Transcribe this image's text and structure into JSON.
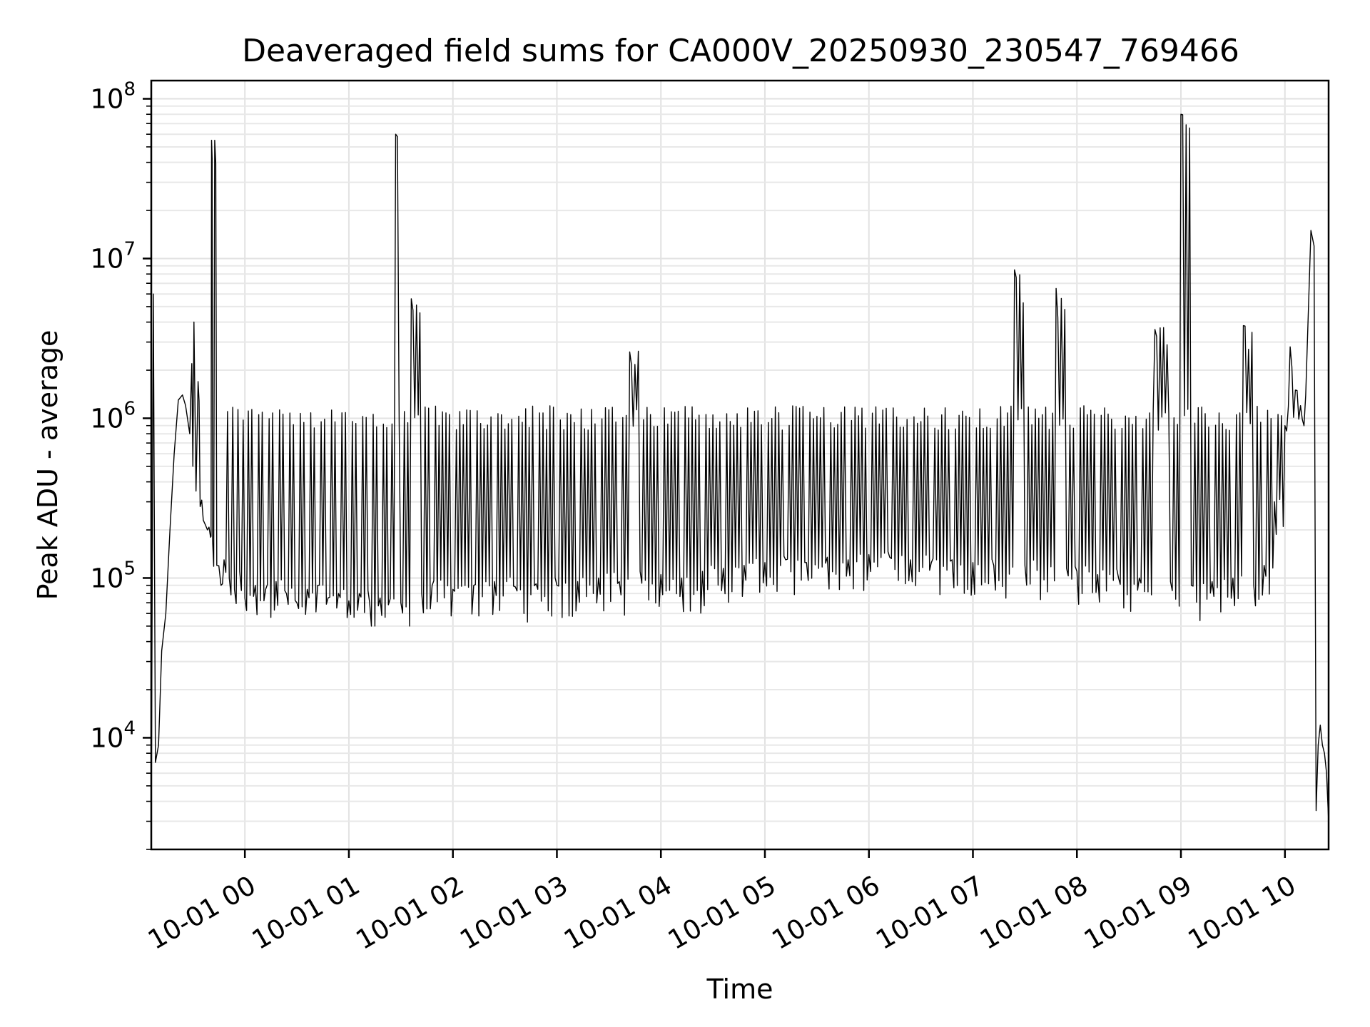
{
  "chart_data": {
    "type": "line",
    "title": "Deaveraged field sums for CA000V_20250930_230547_769466",
    "xlabel": "Time",
    "ylabel": "Peak ADU - average",
    "yscale": "log",
    "ylim": [
      2000,
      130000000
    ],
    "xlim_hours": [
      -0.9,
      10.42
    ],
    "grid": true,
    "x_ticks": [
      {
        "label": "10-01 00",
        "hour": 0
      },
      {
        "label": "10-01 01",
        "hour": 1
      },
      {
        "label": "10-01 02",
        "hour": 2
      },
      {
        "label": "10-01 03",
        "hour": 3
      },
      {
        "label": "10-01 04",
        "hour": 4
      },
      {
        "label": "10-01 05",
        "hour": 5
      },
      {
        "label": "10-01 06",
        "hour": 6
      },
      {
        "label": "10-01 07",
        "hour": 7
      },
      {
        "label": "10-01 08",
        "hour": 8
      },
      {
        "label": "10-01 09",
        "hour": 9
      },
      {
        "label": "10-01 10",
        "hour": 10
      }
    ],
    "y_ticks": [
      {
        "base": "10",
        "exp": "4",
        "value": 10000
      },
      {
        "base": "10",
        "exp": "5",
        "value": 100000
      },
      {
        "base": "10",
        "exp": "6",
        "value": 1000000
      },
      {
        "base": "10",
        "exp": "7",
        "value": 10000000
      },
      {
        "base": "10",
        "exp": "8",
        "value": 100000000
      }
    ],
    "series": [
      {
        "name": "Peak ADU - average",
        "color": "#000000",
        "points": [
          [
            -0.9,
            2800
          ],
          [
            -0.88,
            6000000
          ],
          [
            -0.86,
            7000
          ],
          [
            -0.83,
            9000
          ],
          [
            -0.8,
            35000
          ],
          [
            -0.76,
            60000
          ],
          [
            -0.72,
            200000
          ],
          [
            -0.68,
            600000
          ],
          [
            -0.64,
            1300000
          ],
          [
            -0.6,
            1400000
          ],
          [
            -0.57,
            1200000
          ],
          [
            -0.53,
            800000
          ],
          [
            -0.51,
            2200000
          ],
          [
            -0.5,
            500000
          ],
          [
            -0.49,
            4000000
          ],
          [
            -0.47,
            350000
          ],
          [
            -0.45,
            1700000
          ],
          [
            -0.43,
            280000
          ],
          [
            -0.4,
            230000
          ],
          [
            -0.36,
            200000
          ],
          [
            -0.33,
            180000
          ],
          [
            -0.32,
            55000000
          ],
          [
            -0.31,
            170000
          ],
          [
            -0.29,
            55000000
          ],
          [
            -0.27,
            120000
          ],
          [
            -0.23,
            90000
          ],
          [
            -0.2,
            130000
          ],
          [
            -0.15,
            100000
          ],
          [
            -0.1,
            85000
          ],
          [
            -0.05,
            110000
          ],
          [
            0.0,
            75000
          ],
          [
            0.1,
            90000
          ],
          [
            0.2,
            85000
          ],
          [
            0.3,
            95000
          ],
          [
            0.4,
            80000
          ],
          [
            0.5,
            70000
          ],
          [
            0.6,
            85000
          ],
          [
            0.7,
            90000
          ],
          [
            0.8,
            75000
          ],
          [
            0.9,
            80000
          ],
          [
            1.0,
            72000
          ],
          [
            1.1,
            80000
          ],
          [
            1.2,
            70000
          ],
          [
            1.3,
            75000
          ],
          [
            1.38,
            68000
          ],
          [
            1.45,
            60000000
          ],
          [
            1.5,
            70000
          ],
          [
            1.6,
            5600000
          ],
          [
            1.7,
            80000
          ],
          [
            1.8,
            90000
          ],
          [
            2.0,
            85000
          ],
          [
            2.2,
            90000
          ],
          [
            2.4,
            95000
          ],
          [
            2.6,
            88000
          ],
          [
            2.8,
            92000
          ],
          [
            3.0,
            90000
          ],
          [
            3.2,
            95000
          ],
          [
            3.4,
            100000
          ],
          [
            3.6,
            95000
          ],
          [
            3.7,
            2600000
          ],
          [
            3.8,
            110000
          ],
          [
            4.0,
            105000
          ],
          [
            4.2,
            100000
          ],
          [
            4.4,
            110000
          ],
          [
            4.6,
            115000
          ],
          [
            4.8,
            120000
          ],
          [
            5.0,
            125000
          ],
          [
            5.2,
            130000
          ],
          [
            5.4,
            125000
          ],
          [
            5.6,
            135000
          ],
          [
            5.8,
            130000
          ],
          [
            6.0,
            140000
          ],
          [
            6.2,
            135000
          ],
          [
            6.4,
            130000
          ],
          [
            6.6,
            125000
          ],
          [
            6.8,
            130000
          ],
          [
            7.0,
            125000
          ],
          [
            7.2,
            120000
          ],
          [
            7.4,
            8500000
          ],
          [
            7.5,
            120000
          ],
          [
            7.8,
            6500000
          ],
          [
            7.9,
            115000
          ],
          [
            8.0,
            110000
          ],
          [
            8.2,
            105000
          ],
          [
            8.4,
            100000
          ],
          [
            8.6,
            100000
          ],
          [
            8.75,
            3600000
          ],
          [
            8.9,
            95000
          ],
          [
            9.0,
            80000000
          ],
          [
            9.1,
            90000
          ],
          [
            9.3,
            95000
          ],
          [
            9.5,
            100000
          ],
          [
            9.6,
            3800000
          ],
          [
            9.7,
            90000
          ],
          [
            9.8,
            120000
          ],
          [
            9.9,
            300000
          ],
          [
            10.0,
            900000
          ],
          [
            10.05,
            2800000
          ],
          [
            10.1,
            1500000
          ],
          [
            10.15,
            1200000
          ],
          [
            10.2,
            1400000
          ],
          [
            10.25,
            15000000
          ],
          [
            10.28,
            12000000
          ],
          [
            10.3,
            3500
          ],
          [
            10.32,
            9000
          ],
          [
            10.34,
            12000
          ],
          [
            10.36,
            9000
          ],
          [
            10.38,
            8000
          ],
          [
            10.4,
            6000
          ],
          [
            10.42,
            3000
          ]
        ]
      }
    ]
  }
}
